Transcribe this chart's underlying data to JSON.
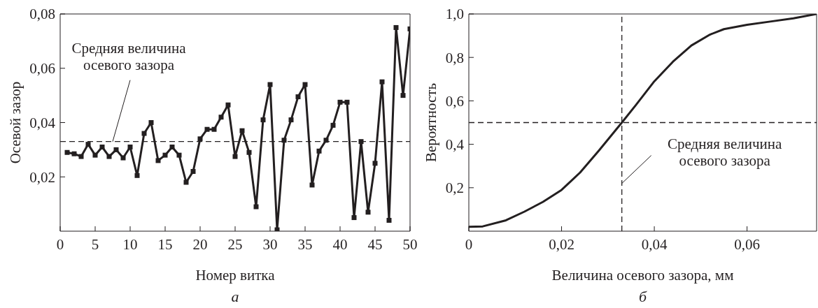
{
  "chart_data": [
    {
      "type": "line",
      "xlabel": "Номер витка",
      "ylabel": "Осевой зазор",
      "x": [
        1,
        2,
        3,
        4,
        5,
        6,
        7,
        8,
        9,
        10,
        11,
        12,
        13,
        14,
        15,
        16,
        17,
        18,
        19,
        20,
        21,
        22,
        23,
        24,
        25,
        26,
        27,
        28,
        29,
        30,
        31,
        32,
        33,
        34,
        35,
        36,
        37,
        38,
        39,
        40,
        41,
        42,
        43,
        44,
        45,
        46,
        47,
        48,
        49,
        50
      ],
      "series": [
        {
          "color": "#231f20",
          "values": [
            0.029,
            0.0285,
            0.0275,
            0.032,
            0.028,
            0.031,
            0.0275,
            0.03,
            0.027,
            0.031,
            0.0205,
            0.036,
            0.04,
            0.026,
            0.028,
            0.031,
            0.028,
            0.018,
            0.022,
            0.034,
            0.0375,
            0.0375,
            0.042,
            0.0465,
            0.0275,
            0.037,
            0.029,
            0.009,
            0.041,
            0.054,
            0.0005,
            0.0335,
            0.041,
            0.0495,
            0.054,
            0.017,
            0.0295,
            0.0335,
            0.039,
            0.0475,
            0.0475,
            0.005,
            0.033,
            0.007,
            0.025,
            0.055,
            0.004,
            0.075,
            0.05,
            0.0745
          ]
        }
      ],
      "xlim": [
        0,
        50
      ],
      "xticks": [
        0,
        5,
        10,
        15,
        20,
        25,
        30,
        35,
        40,
        45,
        50
      ],
      "ylim": [
        0,
        0.08
      ],
      "yticks": [
        {
          "value": 0.02,
          "label": "0,02"
        },
        {
          "value": 0.04,
          "label": "0,04"
        },
        {
          "value": 0.06,
          "label": "0,06"
        },
        {
          "value": 0.08,
          "label": "0,08"
        }
      ],
      "ref_lines": [
        {
          "axis": "y",
          "value": 0.033,
          "line_style": "dashed"
        }
      ],
      "annotations": [
        {
          "text": "Средняя величина\nосевого зазора",
          "x": 7.5,
          "y": 0.033
        },
        "а"
      ],
      "grid": false,
      "legend": false,
      "marker": "square",
      "line_style": "solid"
    },
    {
      "type": "line",
      "xlabel": "Величина осевого зазора, мм",
      "ylabel": "Вероятность",
      "x": [
        0,
        0.003,
        0.008,
        0.012,
        0.016,
        0.02,
        0.024,
        0.028,
        0.033,
        0.036,
        0.04,
        0.044,
        0.048,
        0.052,
        0.055,
        0.06,
        0.065,
        0.07,
        0.075
      ],
      "series": [
        {
          "color": "#231f20",
          "values": [
            0.02,
            0.022,
            0.05,
            0.09,
            0.135,
            0.19,
            0.27,
            0.37,
            0.5,
            0.58,
            0.69,
            0.78,
            0.855,
            0.905,
            0.93,
            0.95,
            0.965,
            0.98,
            1.0
          ]
        }
      ],
      "xlim": [
        0,
        0.075
      ],
      "xticks": [
        0,
        {
          "value": 0.02,
          "label": "0,02"
        },
        {
          "value": 0.04,
          "label": "0,04"
        },
        {
          "value": 0.06,
          "label": "0,06"
        }
      ],
      "ylim": [
        0,
        1
      ],
      "yticks": [
        {
          "value": 0.2,
          "label": "0,2"
        },
        {
          "value": 0.4,
          "label": "0,4"
        },
        {
          "value": 0.6,
          "label": "0,6"
        },
        {
          "value": 0.8,
          "label": "0,8"
        },
        {
          "value": 1,
          "label": "1,0"
        }
      ],
      "ref_lines": [
        {
          "axis": "x",
          "value": 0.033,
          "line_style": "dashed"
        },
        {
          "axis": "y",
          "value": 0.5,
          "line_style": "dashed"
        }
      ],
      "annotations": [
        {
          "text": "Средняя величина\nосевого зазора",
          "x": 0.033,
          "y": 0.22
        },
        "б"
      ],
      "grid": false,
      "legend": false,
      "marker": "none",
      "line_style": "solid"
    }
  ]
}
